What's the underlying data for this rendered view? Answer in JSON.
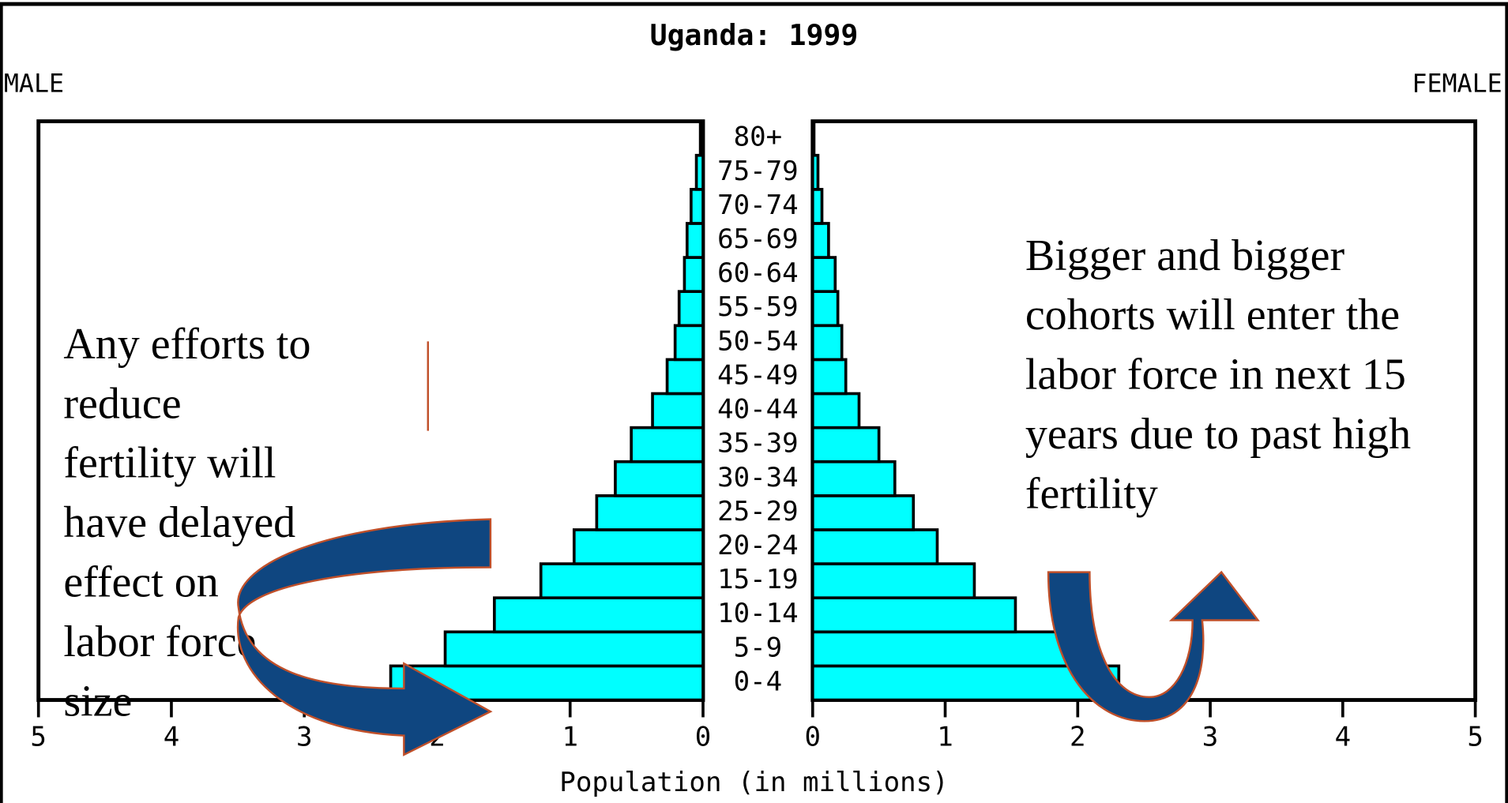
{
  "chart_data": {
    "type": "pyramid",
    "title": "Uganda: 1999",
    "left_label": "MALE",
    "right_label": "FEMALE",
    "x_label": "Population (in millions)",
    "categories": [
      "0-4",
      "5-9",
      "10-14",
      "15-19",
      "20-24",
      "25-29",
      "30-34",
      "35-39",
      "40-44",
      "45-49",
      "50-54",
      "55-59",
      "60-64",
      "65-69",
      "70-74",
      "75-79",
      "80+"
    ],
    "series": [
      {
        "name": "MALE",
        "color": "#00ffff",
        "values": [
          2.35,
          1.94,
          1.57,
          1.22,
          0.97,
          0.8,
          0.66,
          0.54,
          0.38,
          0.27,
          0.21,
          0.18,
          0.14,
          0.12,
          0.09,
          0.05,
          0.02
        ]
      },
      {
        "name": "FEMALE",
        "color": "#00ffff",
        "values": [
          2.31,
          1.93,
          1.53,
          1.22,
          0.94,
          0.76,
          0.62,
          0.5,
          0.35,
          0.25,
          0.22,
          0.19,
          0.17,
          0.12,
          0.07,
          0.04,
          0.01
        ]
      }
    ],
    "xlim": [
      0,
      5
    ],
    "xticks": [
      0,
      1,
      2,
      3,
      4,
      5
    ],
    "annotations": [
      {
        "lines": [
          "Any efforts to",
          "reduce",
          "fertility will",
          "have delayed",
          "effect on",
          "labor force",
          "size"
        ]
      },
      {
        "lines": [
          "Bigger and bigger",
          "cohorts will enter the",
          "labor force in next 15",
          "years due to past high",
          "fertility"
        ]
      }
    ]
  }
}
